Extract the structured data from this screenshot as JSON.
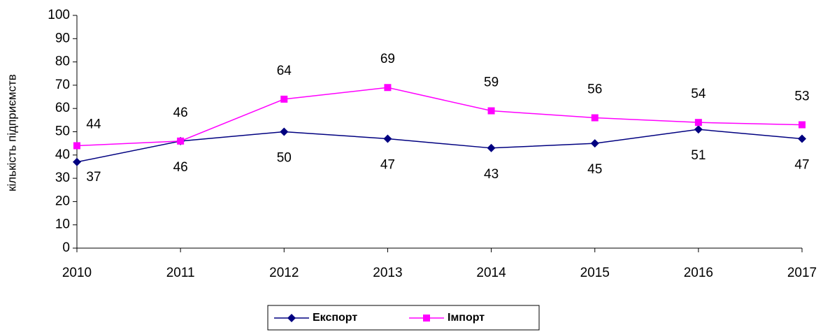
{
  "chart_data": {
    "type": "line",
    "y_label": "кількість підприємств",
    "x": [
      2010,
      2011,
      2012,
      2013,
      2014,
      2015,
      2016,
      2017
    ],
    "xlim": [
      2010,
      2017
    ],
    "xticks": [
      2010,
      2011,
      2012,
      2013,
      2014,
      2015,
      2016,
      2017
    ],
    "ylim": [
      0,
      100
    ],
    "yticks": [
      0,
      10,
      20,
      30,
      40,
      50,
      60,
      70,
      80,
      90,
      100
    ],
    "grid": false,
    "legend": "bottom",
    "series": [
      {
        "name": "Експорт",
        "color": "#000080",
        "marker": "diamond",
        "values": [
          37,
          46,
          50,
          47,
          43,
          45,
          51,
          47
        ]
      },
      {
        "name": "Імпорт",
        "color": "#ff00ff",
        "marker": "square",
        "values": [
          44,
          46,
          64,
          69,
          59,
          56,
          54,
          53
        ]
      }
    ]
  }
}
